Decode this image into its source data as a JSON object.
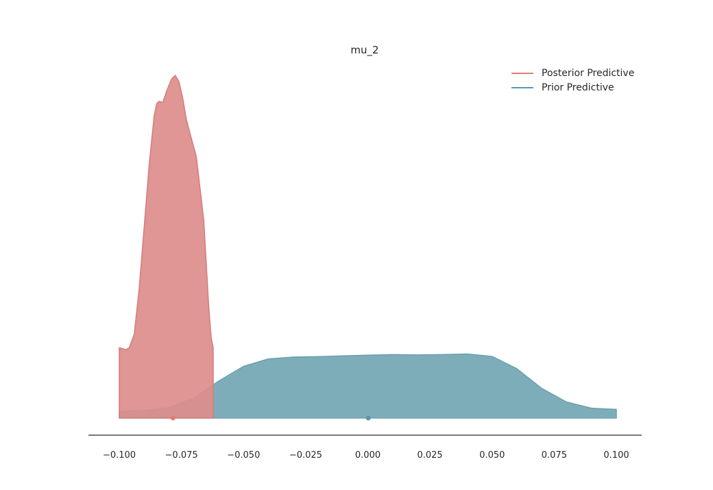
{
  "chart_data": {
    "type": "area",
    "title": "mu_2",
    "xlabel": "",
    "ylabel": "",
    "xlim": [
      -0.11,
      0.11
    ],
    "x_ticks": [
      "-0.100",
      "-0.075",
      "-0.050",
      "-0.025",
      "0.000",
      "0.025",
      "0.050",
      "0.075",
      "0.100"
    ],
    "x_tick_values": [
      -0.1,
      -0.075,
      -0.05,
      -0.025,
      0.0,
      0.025,
      0.05,
      0.075,
      0.1
    ],
    "grid": false,
    "legend_position": "top-right",
    "series": [
      {
        "name": "Posterior Predictive",
        "color": "#d47c7a",
        "fill": "#dc8d8b",
        "x": [
          -0.1,
          -0.099,
          -0.0975,
          -0.096,
          -0.094,
          -0.092,
          -0.09,
          -0.088,
          -0.086,
          -0.085,
          -0.084,
          -0.0825,
          -0.081,
          -0.079,
          -0.0775,
          -0.076,
          -0.0745,
          -0.073,
          -0.071,
          -0.069,
          -0.068,
          -0.066,
          -0.065,
          -0.064,
          -0.063,
          -0.0622
        ],
        "y": [
          0.57,
          0.565,
          0.555,
          0.57,
          0.68,
          1.05,
          1.55,
          2.05,
          2.45,
          2.55,
          2.57,
          2.56,
          2.65,
          2.75,
          2.78,
          2.73,
          2.6,
          2.42,
          2.27,
          2.12,
          1.95,
          1.6,
          1.25,
          0.9,
          0.65,
          0.57
        ],
        "mean_marker": -0.0784
      },
      {
        "name": "Prior Predictive",
        "color": "#6b9fae",
        "fill": "#7eadba",
        "x": [
          -0.1,
          -0.09,
          -0.08,
          -0.07,
          -0.06,
          -0.05,
          -0.04,
          -0.03,
          -0.02,
          -0.01,
          0.0,
          0.01,
          0.02,
          0.03,
          0.04,
          0.05,
          0.06,
          0.07,
          0.08,
          0.09,
          0.1
        ],
        "y": [
          0.055,
          0.06,
          0.085,
          0.16,
          0.3,
          0.42,
          0.48,
          0.495,
          0.498,
          0.505,
          0.51,
          0.515,
          0.512,
          0.515,
          0.52,
          0.5,
          0.4,
          0.24,
          0.13,
          0.08,
          0.07
        ],
        "mean_marker": 0.0002
      }
    ]
  }
}
